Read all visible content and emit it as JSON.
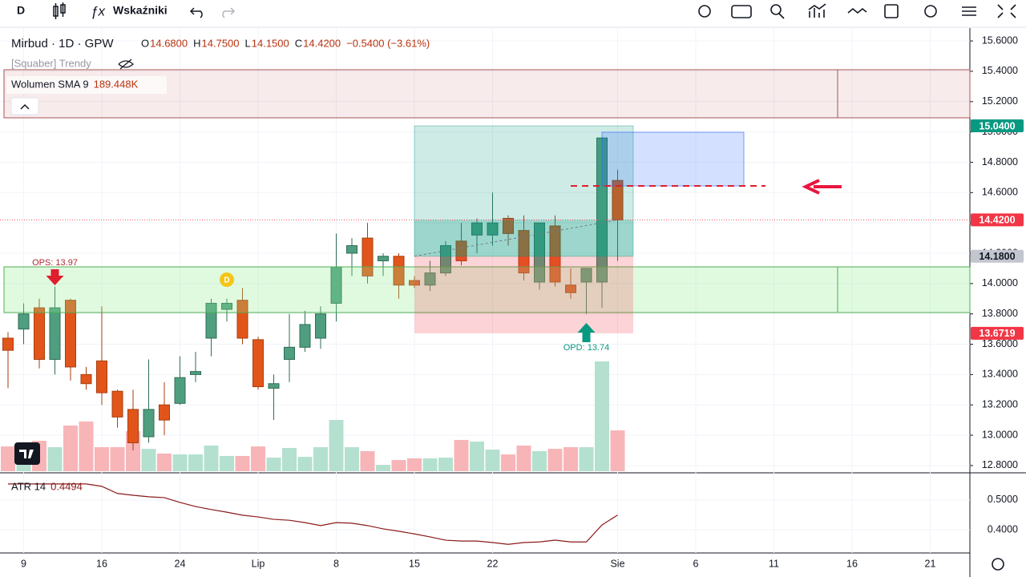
{
  "toolbar": {
    "symbol_button": "D",
    "indicators": "Wskaźniki"
  },
  "chart_data": {
    "type": "candlestick",
    "title": "Mirbud · 1D · GPW",
    "legend": {
      "ohlc": [
        {
          "key": "O",
          "value": "14.6800"
        },
        {
          "key": "H",
          "value": "14.7500"
        },
        {
          "key": "L",
          "value": "14.1500"
        },
        {
          "key": "C",
          "value": "14.4200"
        }
      ],
      "change": "−0.5400 (−3.61%)"
    },
    "indicator_name": "[Squaber] Trendy",
    "up_color": "#4f9e7f",
    "down_color": "#e2551a",
    "categories": [
      null,
      "9",
      null,
      null,
      null,
      null,
      "16",
      null,
      null,
      null,
      null,
      "24",
      null,
      null,
      null,
      null,
      "Lip",
      null,
      null,
      null,
      null,
      "8",
      null,
      null,
      null,
      null,
      "15",
      null,
      null,
      null,
      null,
      "22",
      null,
      null,
      null,
      null,
      null,
      null,
      null,
      "Sie",
      null,
      null,
      null,
      null,
      "6",
      null,
      null,
      null,
      null,
      "11",
      null,
      null,
      null,
      null,
      "16",
      null,
      null,
      null,
      null,
      "21"
    ],
    "open": [
      13.64,
      13.7,
      13.84,
      13.5,
      13.89,
      13.4,
      13.49,
      13.29,
      13.17,
      12.99,
      13.2,
      13.21,
      13.4,
      13.64,
      13.83,
      13.89,
      13.63,
      13.31,
      13.5,
      13.58,
      13.64,
      13.87,
      14.2,
      14.3,
      14.15,
      14.18,
      14.02,
      13.99,
      14.07,
      14.28,
      14.32,
      14.32,
      14.43,
      14.35,
      14.01,
      14.38,
      13.99,
      14.01,
      14.01,
      14.68,
      null,
      null,
      null,
      null,
      null,
      null,
      null,
      null,
      null,
      null,
      null,
      null,
      null,
      null,
      null,
      null,
      null,
      null,
      null,
      null
    ],
    "high": [
      13.68,
      13.87,
      13.9,
      13.98,
      13.9,
      13.45,
      13.85,
      13.3,
      13.3,
      13.5,
      13.35,
      13.52,
      13.55,
      13.9,
      13.9,
      13.97,
      13.65,
      13.4,
      13.8,
      13.82,
      13.85,
      14.33,
      14.3,
      14.4,
      14.2,
      14.2,
      14.05,
      14.15,
      14.28,
      14.4,
      14.43,
      14.6,
      14.45,
      14.45,
      14.4,
      14.45,
      14.1,
      14.1,
      14.96,
      14.75,
      null,
      null,
      null,
      null,
      null,
      null,
      null,
      null,
      null,
      null,
      null,
      null,
      null,
      null,
      null,
      null,
      null,
      null,
      null,
      null
    ],
    "low": [
      13.31,
      13.6,
      13.44,
      13.4,
      13.36,
      13.3,
      13.2,
      13.05,
      12.9,
      12.95,
      13.0,
      13.2,
      13.35,
      13.52,
      13.75,
      13.6,
      13.3,
      13.1,
      13.35,
      13.55,
      13.57,
      13.75,
      14.05,
      14.0,
      14.05,
      13.9,
      13.97,
      13.95,
      14.05,
      14.12,
      14.2,
      14.25,
      14.25,
      14.02,
      13.96,
      13.98,
      13.9,
      13.8,
      13.84,
      14.15,
      null,
      null,
      null,
      null,
      null,
      null,
      null,
      null,
      null,
      null,
      null,
      null,
      null,
      null,
      null,
      null,
      null,
      null,
      null,
      null
    ],
    "close": [
      13.56,
      13.8,
      13.5,
      13.84,
      13.45,
      13.34,
      13.28,
      13.12,
      12.95,
      13.17,
      13.1,
      13.38,
      13.42,
      13.87,
      13.87,
      13.64,
      13.32,
      13.34,
      13.58,
      13.73,
      13.8,
      14.11,
      14.25,
      14.05,
      14.18,
      13.99,
      13.99,
      14.07,
      14.25,
      14.15,
      14.4,
      14.4,
      14.33,
      14.07,
      14.4,
      14.01,
      13.94,
      14.1,
      14.96,
      14.42,
      null,
      null,
      null,
      null,
      null,
      null,
      null,
      null,
      null,
      null,
      null,
      null,
      null,
      null,
      null,
      null,
      null,
      null,
      null,
      null
    ],
    "ylim": [
      12.752,
      15.685
    ],
    "yticks": [
      {
        "value": 15.6,
        "label": "15.6000"
      },
      {
        "value": 15.4,
        "label": "15.4000"
      },
      {
        "value": 15.2,
        "label": "15.2000"
      },
      {
        "value": 15.0,
        "label": "15.0000"
      },
      {
        "value": 14.8,
        "label": "14.8000"
      },
      {
        "value": 14.6,
        "label": "14.6000"
      },
      {
        "value": 14.4,
        "label": "14.4000"
      },
      {
        "value": 14.2,
        "label": "14.2000"
      },
      {
        "value": 14.0,
        "label": "14.0000"
      },
      {
        "value": 13.8,
        "label": "13.8000"
      },
      {
        "value": 13.6,
        "label": "13.6000"
      },
      {
        "value": 13.4,
        "label": "13.4000"
      },
      {
        "value": 13.2,
        "label": "13.2000"
      },
      {
        "value": 13.0,
        "label": "13.0000"
      },
      {
        "value": 12.8,
        "label": "12.8000"
      }
    ],
    "price_labels": [
      {
        "value": 15.04,
        "label": "15.0400",
        "color": "#089981"
      },
      {
        "value": 14.42,
        "label": "14.4200",
        "color": "#f23645"
      },
      {
        "value": 14.18,
        "label": "14.1800",
        "color": "#c3c6ce"
      },
      {
        "value": 13.6719,
        "label": "13.6719",
        "color": "#f23645"
      }
    ],
    "annotations": [
      {
        "text": "OPS: 13.97",
        "value": 13.97,
        "index": 3,
        "color": "#b22833"
      },
      {
        "text": "OPD: 13.74",
        "value": 13.74,
        "index": 37,
        "color": "#089981"
      },
      {
        "text": "D",
        "index": 14
      }
    ],
    "volume": {
      "name": "Wolumen SMA 9",
      "sma": "189.448K",
      "up_color": "#b4e0cf",
      "down_color": "#f7b5b8",
      "values": [
        195,
        189,
        239,
        189,
        359,
        391,
        189,
        189,
        315,
        176,
        139,
        132,
        132,
        202,
        120,
        120,
        195,
        107,
        183,
        113,
        189,
        403,
        189,
        158,
        50,
        88,
        101,
        101,
        107,
        246,
        233,
        170,
        132,
        202,
        158,
        176,
        189,
        189,
        863,
        321,
        null,
        null,
        null,
        null,
        null,
        null,
        null,
        null,
        null,
        null,
        null,
        null,
        null,
        null,
        null,
        null,
        null,
        null,
        null,
        null
      ]
    },
    "atr": {
      "name": "ATR 14",
      "last": "0.4494",
      "color": "#8b1a1a",
      "values": [
        0.554,
        0.554,
        0.554,
        0.554,
        0.554,
        0.554,
        0.546,
        0.522,
        0.516,
        0.511,
        0.508,
        0.492,
        0.478,
        0.468,
        0.459,
        0.449,
        0.443,
        0.435,
        0.432,
        0.424,
        0.414,
        0.424,
        0.422,
        0.414,
        0.403,
        0.395,
        0.386,
        0.376,
        0.365,
        0.362,
        0.362,
        0.357,
        0.351,
        0.357,
        0.359,
        0.365,
        0.359,
        0.359,
        0.416,
        0.4494,
        null,
        null,
        null,
        null,
        null,
        null,
        null,
        null,
        null,
        null,
        null,
        null,
        null,
        null,
        null,
        null,
        null,
        null,
        null,
        null
      ],
      "ylim": [
        0.322,
        0.586
      ],
      "yticks": [
        {
          "value": 0.5,
          "label": "0.5000"
        },
        {
          "value": 0.4,
          "label": "0.4000"
        }
      ]
    }
  }
}
